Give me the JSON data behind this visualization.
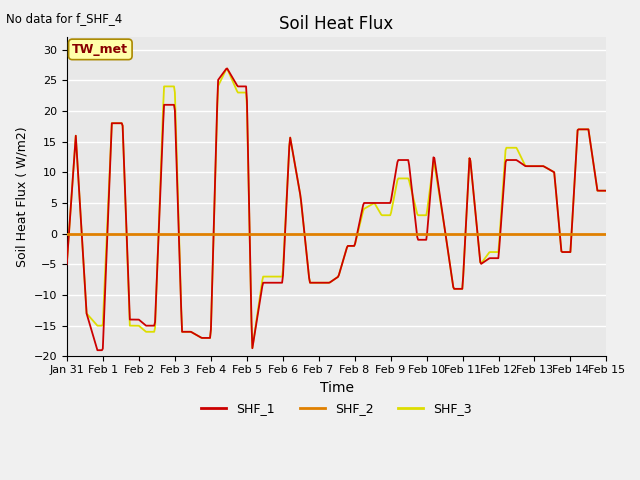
{
  "title": "Soil Heat Flux",
  "top_left_text": "No data for f_SHF_4",
  "xlabel": "Time",
  "ylabel": "Soil Heat Flux ( W/m2)",
  "ylim": [
    -20,
    32
  ],
  "yticks": [
    -20,
    -15,
    -10,
    -5,
    0,
    5,
    10,
    15,
    20,
    25,
    30
  ],
  "bg_color": "#dcdcdc",
  "plot_bg": "#e8e8e8",
  "legend_labels": [
    "SHF_1",
    "SHF_2",
    "SHF_3"
  ],
  "shf1_color": "#cc0000",
  "shf2_color": "#e08000",
  "shf3_color": "#dddd00",
  "box_label": "TW_met",
  "box_text_color": "#880000",
  "box_bg_color": "#ffffaa",
  "box_edge_color": "#aa8800",
  "x_tick_labels": [
    "Jan 31",
    "Feb 1",
    "Feb 2",
    "Feb 3",
    "Feb 4",
    "Feb 5",
    "Feb 6",
    "Feb 7",
    "Feb 8",
    "Feb 9",
    "Feb 10",
    "Feb 11",
    "Feb 12",
    "Feb 13",
    "Feb 14",
    "Feb 15"
  ],
  "shf1_x": [
    0,
    0.25,
    0.55,
    0.85,
    1.0,
    1.25,
    1.55,
    1.75,
    2.0,
    2.2,
    2.45,
    2.7,
    3.0,
    3.2,
    3.45,
    3.75,
    4.0,
    4.2,
    4.45,
    4.75,
    5.0,
    5.15,
    5.45,
    5.7,
    6.0,
    6.2,
    6.5,
    6.75,
    7.0,
    7.3,
    7.55,
    7.8,
    8.0,
    8.25,
    8.55,
    8.75,
    9.0,
    9.2,
    9.5,
    9.75,
    10.0,
    10.2,
    10.5,
    10.75,
    11.0,
    11.2,
    11.5,
    11.75,
    12.0,
    12.2,
    12.5,
    12.75,
    13.0,
    13.25,
    13.55,
    13.75,
    14.0,
    14.2,
    14.5,
    14.75,
    15.0
  ],
  "shf1_y": [
    -5,
    16,
    -13,
    -19,
    -19,
    18,
    18,
    -14,
    -14,
    -15,
    -15,
    21,
    21,
    -16,
    -16,
    -17,
    -17,
    25,
    27,
    24,
    24,
    -19,
    -8,
    -8,
    -8,
    16,
    6,
    -8,
    -8,
    -8,
    -7,
    -2,
    -2,
    5,
    5,
    5,
    5,
    12,
    12,
    -1,
    -1,
    13,
    1,
    -9,
    -9,
    13,
    -5,
    -4,
    -4,
    12,
    12,
    11,
    11,
    11,
    10,
    -3,
    -3,
    17,
    17,
    7,
    7
  ],
  "shf3_x": [
    0,
    0.25,
    0.55,
    0.85,
    1.0,
    1.25,
    1.55,
    1.75,
    2.0,
    2.2,
    2.45,
    2.7,
    3.0,
    3.2,
    3.45,
    3.75,
    4.0,
    4.2,
    4.45,
    4.75,
    5.0,
    5.15,
    5.45,
    5.7,
    6.0,
    6.2,
    6.5,
    6.75,
    7.0,
    7.3,
    7.55,
    7.8,
    8.0,
    8.25,
    8.55,
    8.75,
    9.0,
    9.2,
    9.5,
    9.75,
    10.0,
    10.2,
    10.5,
    10.75,
    11.0,
    11.2,
    11.5,
    11.75,
    12.0,
    12.2,
    12.5,
    12.75,
    13.0,
    13.25,
    13.55,
    13.75,
    14.0,
    14.2,
    14.5,
    14.75,
    15.0
  ],
  "shf3_y": [
    -5,
    16,
    -13,
    -15,
    -15,
    18,
    18,
    -15,
    -15,
    -16,
    -16,
    24,
    24,
    -16,
    -16,
    -17,
    -17,
    24,
    27,
    23,
    23,
    -19,
    -7,
    -7,
    -7,
    16,
    6,
    -8,
    -8,
    -8,
    -7,
    -2,
    -2,
    4,
    5,
    3,
    3,
    9,
    9,
    3,
    3,
    12,
    1,
    -9,
    -9,
    13,
    -5,
    -3,
    -3,
    14,
    14,
    11,
    11,
    11,
    10,
    -3,
    -3,
    17,
    17,
    7,
    7
  ]
}
